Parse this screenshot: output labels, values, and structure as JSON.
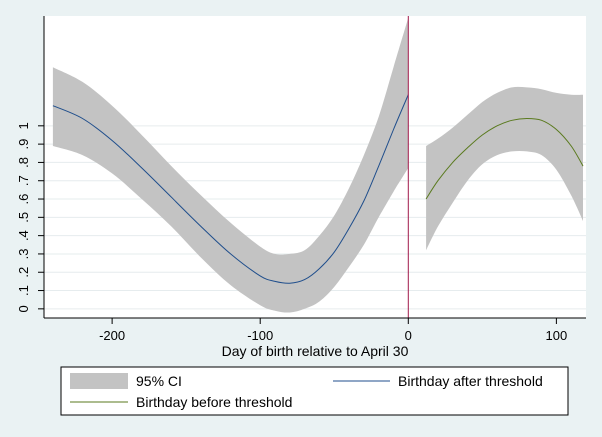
{
  "chart_data": {
    "type": "line",
    "xlabel": "Day of birth relative to April 30",
    "ylabel": "",
    "xlim": [
      -246,
      120
    ],
    "ylim": [
      -0.05,
      1.6
    ],
    "x_ticks": [
      -200,
      -100,
      0,
      100
    ],
    "y_ticks": [
      0,
      0.1,
      0.2,
      0.3,
      0.4,
      0.5,
      0.6,
      0.7,
      0.8,
      0.9,
      1
    ],
    "y_tick_labels": [
      "0",
      ".1",
      ".2",
      ".3",
      ".4",
      ".5",
      ".6",
      ".7",
      ".8",
      ".9",
      "1"
    ],
    "threshold": {
      "x": 0,
      "color": "#a0184a"
    },
    "grid": true,
    "legend_position": "bottom",
    "series": [
      {
        "name": "Birthday after threshold",
        "color": "#1f4e8c",
        "x": [
          -240,
          -220,
          -200,
          -180,
          -160,
          -140,
          -120,
          -100,
          -90,
          -80,
          -70,
          -60,
          -50,
          -40,
          -30,
          -20,
          -10,
          0
        ],
        "y": [
          1.11,
          1.04,
          0.92,
          0.77,
          0.61,
          0.45,
          0.3,
          0.18,
          0.15,
          0.14,
          0.16,
          0.22,
          0.31,
          0.44,
          0.59,
          0.78,
          0.98,
          1.17
        ],
        "ci_lower": [
          0.89,
          0.84,
          0.74,
          0.6,
          0.45,
          0.28,
          0.13,
          0.02,
          -0.01,
          -0.02,
          0.0,
          0.04,
          0.12,
          0.23,
          0.35,
          0.5,
          0.64,
          0.77
        ],
        "ci_upper": [
          1.32,
          1.24,
          1.11,
          0.95,
          0.78,
          0.62,
          0.47,
          0.34,
          0.3,
          0.3,
          0.32,
          0.4,
          0.51,
          0.66,
          0.84,
          1.05,
          1.32,
          1.59
        ]
      },
      {
        "name": "Birthday before threshold",
        "color": "#5a7a1e",
        "x": [
          12,
          20,
          30,
          40,
          50,
          60,
          70,
          80,
          90,
          100,
          110,
          118
        ],
        "y": [
          0.6,
          0.7,
          0.8,
          0.88,
          0.95,
          1.0,
          1.03,
          1.04,
          1.03,
          0.98,
          0.89,
          0.78
        ],
        "ci_lower": [
          0.32,
          0.45,
          0.58,
          0.7,
          0.79,
          0.84,
          0.86,
          0.86,
          0.84,
          0.76,
          0.62,
          0.48
        ],
        "ci_upper": [
          0.89,
          0.93,
          0.99,
          1.06,
          1.13,
          1.18,
          1.21,
          1.21,
          1.2,
          1.18,
          1.17,
          1.17
        ]
      }
    ],
    "ci_label": "95% CI",
    "ci_color": "#c3c3c3"
  },
  "legend": {
    "ci_label": "95% CI",
    "after_label": "Birthday after threshold",
    "before_label": "Birthday before threshold"
  }
}
